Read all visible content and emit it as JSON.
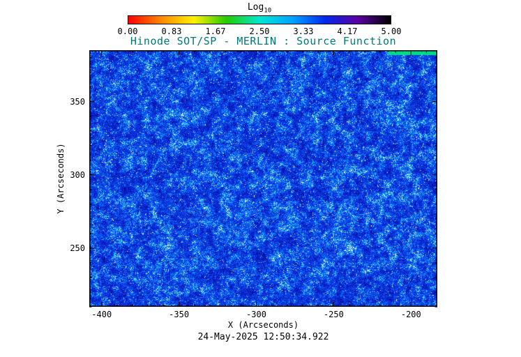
{
  "title": "Hinode SOT/SP - MERLIN : Source Function",
  "title_color": "#007878",
  "timestamp": "24-May-2025 12:50:34.922",
  "colorbar": {
    "label": "Log",
    "label_subscript": "10",
    "tick_labels": [
      "0.00",
      "0.83",
      "1.67",
      "2.50",
      "3.33",
      "4.17",
      "5.00"
    ],
    "gradient_stops": [
      "#ff0000",
      "#ff8800",
      "#fff200",
      "#22cc00",
      "#00e8d0",
      "#00a4ff",
      "#0028ee",
      "#5c00a0",
      "#000000"
    ]
  },
  "axes": {
    "x_label": "X (Arcseconds)",
    "y_label": "Y (Arcseconds)",
    "x_tick_labels": [
      "-400",
      "-350",
      "-300",
      "-250",
      "-200"
    ],
    "y_tick_labels": [
      "350",
      "300",
      "250"
    ]
  },
  "chart_data": {
    "type": "heatmap",
    "title": "Hinode SOT/SP - MERLIN : Source Function",
    "xlabel": "X (Arcseconds)",
    "ylabel": "Y (Arcseconds)",
    "xlim": [
      -408,
      -183
    ],
    "ylim": [
      210,
      385
    ],
    "xticks": [
      -400,
      -350,
      -300,
      -250,
      -200
    ],
    "yticks": [
      350,
      300,
      250
    ],
    "x_minor_step": 10,
    "y_minor_step": 10,
    "colorbar": {
      "label": "Log10",
      "range": [
        0,
        5
      ],
      "ticks": [
        0.0,
        0.83,
        1.67,
        2.5,
        3.33,
        4.17,
        5.0
      ]
    },
    "value_description": "Log10 of source function: field dominated by values near 4.0-4.3 (blue) with dense speckles near 3.0-3.5 (cyan/white), darker mottling near 4.3-4.6, and a bright green strip (~2.3) along the top-right edge of the map",
    "timestamp": "24-May-2025 12:50:34.922"
  }
}
